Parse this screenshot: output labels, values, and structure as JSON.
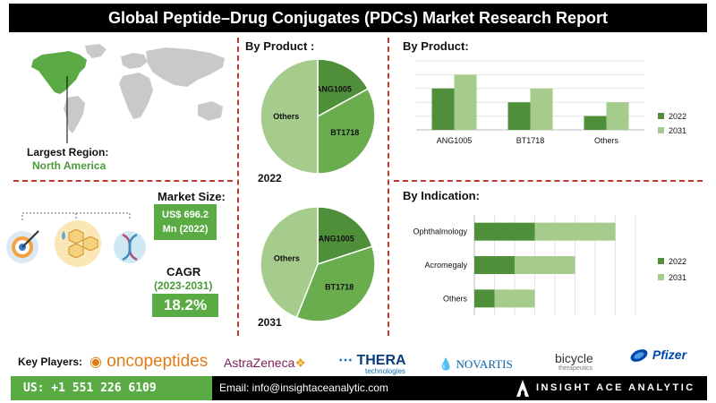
{
  "header": {
    "title": "Global Peptide–Drug Conjugates (PDCs) Market Research Report"
  },
  "region": {
    "label": "Largest Region:",
    "value": "North America"
  },
  "market_size": {
    "label": "Market Size:",
    "value_line1": "US$ 696.2",
    "value_line2": "Mn (2022)"
  },
  "cagr": {
    "label": "CAGR",
    "period": "(2023-2031)",
    "value": "18.2%"
  },
  "pie_section": {
    "title": "By Product :"
  },
  "bar_product": {
    "title": "By Product:"
  },
  "bar_indication": {
    "title": "By Indication:"
  },
  "key_players": {
    "label": "Key Players:",
    "logos": [
      "oncopeptides",
      "AstraZeneca",
      "THERA",
      "technologies",
      "NOVARTIS",
      "bicycle",
      "therapeutics",
      "Pfizer"
    ]
  },
  "footer": {
    "phone": "US: +1 551 226 6109",
    "email": "Email: info@insightaceanalytic.com",
    "brand": "INSIGHT ACE ANALYTIC"
  },
  "colors": {
    "dark_green": "#4f8f3a",
    "mid_green": "#6aad4f",
    "light_green": "#a5cc8c",
    "accent_red": "#c0392b",
    "black": "#000000"
  },
  "chart_data": [
    {
      "type": "pie",
      "title": "2022",
      "labels": [
        "ANG1005",
        "BT1718",
        "Others"
      ],
      "values": [
        17,
        33,
        50
      ],
      "colors": [
        "#4f8f3a",
        "#6aad4f",
        "#a5cc8c"
      ]
    },
    {
      "type": "pie",
      "title": "2031",
      "labels": [
        "ANG1005",
        "BT1718",
        "Others"
      ],
      "values": [
        20,
        36,
        44
      ],
      "colors": [
        "#4f8f3a",
        "#6aad4f",
        "#a5cc8c"
      ]
    },
    {
      "type": "bar",
      "orientation": "vertical",
      "categories": [
        "ANG1005",
        "BT1718",
        "Others"
      ],
      "series": [
        {
          "name": "2022",
          "values": [
            60,
            40,
            20
          ],
          "color": "#4f8f3a"
        },
        {
          "name": "2031",
          "values": [
            80,
            60,
            40
          ],
          "color": "#a5cc8c"
        }
      ],
      "ylim": [
        0,
        100
      ],
      "grid": true,
      "legend": "right"
    },
    {
      "type": "bar",
      "orientation": "horizontal",
      "stacked": true,
      "categories": [
        "Ophthalmology",
        "Acromegaly",
        "Others"
      ],
      "series": [
        {
          "name": "2022",
          "values": [
            30,
            20,
            10
          ],
          "color": "#4f8f3a"
        },
        {
          "name": "2031",
          "values": [
            40,
            30,
            20
          ],
          "color": "#a5cc8c"
        }
      ],
      "xlim": [
        0,
        80
      ],
      "grid": true,
      "legend": "right"
    }
  ]
}
